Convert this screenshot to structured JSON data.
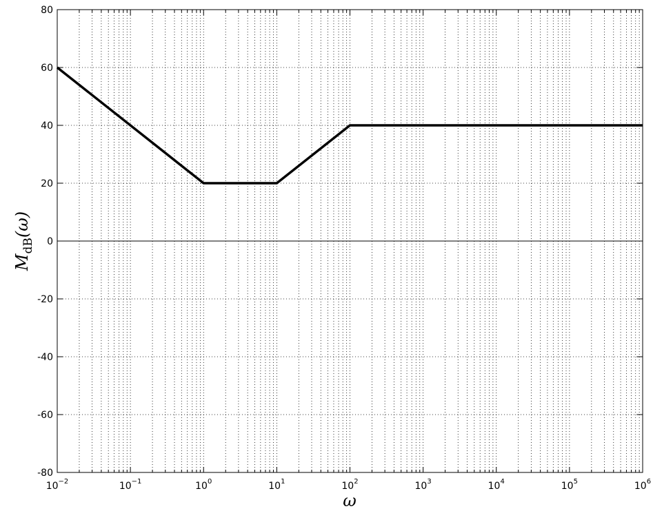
{
  "chart_data": {
    "type": "line",
    "title": "",
    "xlabel": "ω",
    "ylabel": {
      "main": "M",
      "subscript": "dB",
      "argument": "(ω)"
    },
    "xscale": "log",
    "xlim": [
      0.01,
      1000000
    ],
    "ylim": [
      -80,
      80
    ],
    "grid": true,
    "legend": "none",
    "xticks": [
      {
        "value": 0.01,
        "base": "10",
        "exp": "−2"
      },
      {
        "value": 0.1,
        "base": "10",
        "exp": "−1"
      },
      {
        "value": 1,
        "base": "10",
        "exp": "0"
      },
      {
        "value": 10,
        "base": "10",
        "exp": "1"
      },
      {
        "value": 100,
        "base": "10",
        "exp": "2"
      },
      {
        "value": 1000,
        "base": "10",
        "exp": "3"
      },
      {
        "value": 10000,
        "base": "10",
        "exp": "4"
      },
      {
        "value": 100000,
        "base": "10",
        "exp": "5"
      },
      {
        "value": 1000000,
        "base": "10",
        "exp": "6"
      }
    ],
    "yticks": [
      {
        "value": 80,
        "label": "80"
      },
      {
        "value": 60,
        "label": "60"
      },
      {
        "value": 40,
        "label": "40"
      },
      {
        "value": 20,
        "label": "20"
      },
      {
        "value": 0,
        "label": "0"
      },
      {
        "value": -20,
        "label": "-20"
      },
      {
        "value": -40,
        "label": "-40"
      },
      {
        "value": -60,
        "label": "-60"
      },
      {
        "value": -80,
        "label": "-80"
      }
    ],
    "zero_line": true,
    "series": [
      {
        "color": "#000000",
        "x": [
          0.01,
          1,
          10,
          100,
          1000000
        ],
        "y": [
          60,
          20,
          20,
          40,
          40
        ]
      }
    ]
  }
}
